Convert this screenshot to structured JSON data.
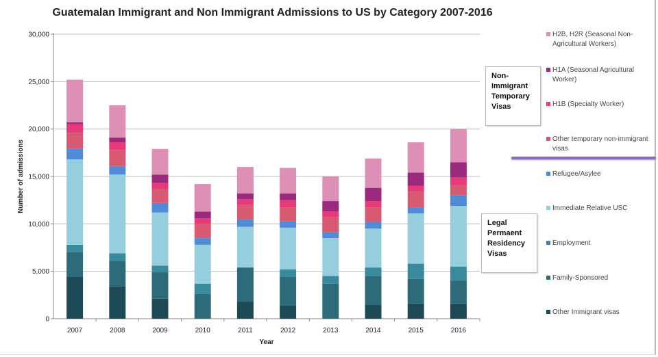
{
  "chart_data": {
    "type": "bar",
    "stacked": true,
    "title": "Guatemalan Immigrant and Non Immigrant Admissions to US by Category 2007-2016",
    "xlabel": "Year",
    "ylabel": "Number of admissions",
    "ylim": [
      0,
      30000
    ],
    "yticks": [
      "0",
      "5,000",
      "10,000",
      "15,000",
      "20,000",
      "25,000",
      "30,000"
    ],
    "ytick_values": [
      0,
      5000,
      10000,
      15000,
      20000,
      25000,
      30000
    ],
    "grid": true,
    "legend": "right",
    "categories": [
      "2007",
      "2008",
      "2009",
      "2010",
      "2011",
      "2012",
      "2013",
      "2014",
      "2015",
      "2016"
    ],
    "series": [
      {
        "name": "Other Immigrant visas",
        "color": "#1e4a55",
        "values": [
          4400,
          3400,
          2100,
          0,
          1800,
          1400,
          0,
          1500,
          1600,
          1600
        ]
      },
      {
        "name": "Family-Sponsored",
        "color": "#2d6b7a",
        "values": [
          2600,
          2700,
          2800,
          2600,
          3600,
          3000,
          3700,
          3000,
          2600,
          2400
        ]
      },
      {
        "name": "Employment",
        "color": "#3a8a9e",
        "values": [
          800,
          800,
          700,
          1100,
          0,
          800,
          800,
          900,
          1600,
          1500
        ]
      },
      {
        "name": "Immediate Relative USC",
        "color": "#97cede",
        "values": [
          9000,
          8300,
          5600,
          4100,
          4300,
          4400,
          4000,
          4100,
          5300,
          6400
        ]
      },
      {
        "name": "Refugee/Asylee",
        "color": "#4f8bd6",
        "values": [
          1100,
          900,
          1000,
          700,
          800,
          700,
          600,
          700,
          650,
          1100
        ]
      },
      {
        "name": "Other temporary non-immigrant visas",
        "color": "#d75a72",
        "values": [
          1700,
          1700,
          1500,
          1500,
          1500,
          1400,
          1600,
          1500,
          1650,
          1100
        ]
      },
      {
        "name": "H1B (Specialty Worker)",
        "color": "#e83a78",
        "values": [
          900,
          800,
          600,
          600,
          600,
          800,
          600,
          700,
          600,
          800
        ]
      },
      {
        "name": "H1A (Seasonal Agricultural Worker)",
        "color": "#9b2a7e",
        "values": [
          200,
          500,
          900,
          700,
          600,
          700,
          1100,
          1400,
          1400,
          1600
        ]
      },
      {
        "name": "H2B, H2R (Seasonal Non-Agricultural Workers)",
        "color": "#dd8fb5",
        "values": [
          4500,
          3400,
          2700,
          2900,
          2800,
          2700,
          2600,
          3100,
          3200,
          3500
        ]
      }
    ]
  },
  "legend": {
    "items": [
      "H2B, H2R (Seasonal Non-Agricultural Workers)",
      "H1A (Seasonal Agricultural Worker)",
      "H1B (Specialty Worker)",
      "Other temporary non-immigrant visas",
      "Refugee/Asylee",
      "Immediate Relative USC",
      "Employment",
      "Family-Sponsored",
      "Other Immigrant visas"
    ],
    "group_non_immigrant": "Non-Immigrant Temporary Visas",
    "group_legal": "Legal Permaent Residency Visas",
    "divider_color": "#8e6bbe"
  }
}
